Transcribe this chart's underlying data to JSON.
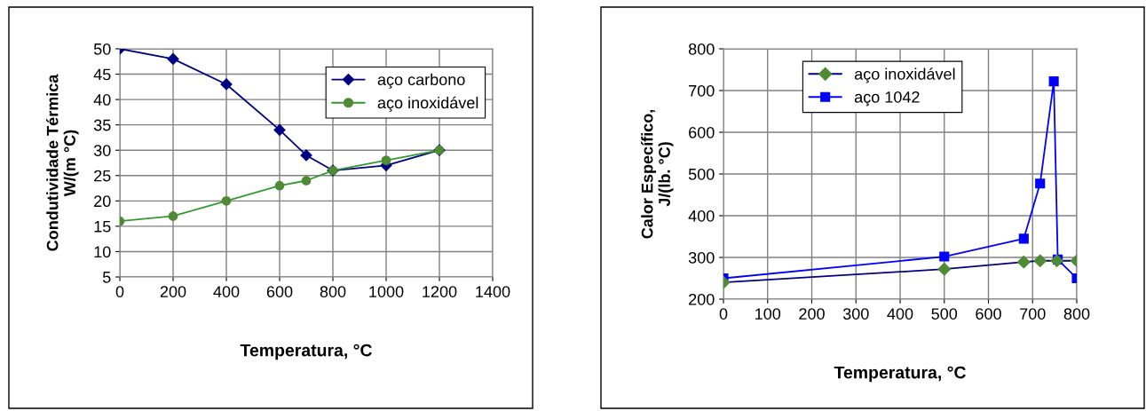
{
  "chart_data": [
    {
      "type": "line",
      "xlabel": "Temperatura, °C",
      "ylabel": "Condutividade Térmica\nW/(m °C)",
      "xlim": [
        0,
        1400
      ],
      "xticks": [
        0,
        200,
        400,
        600,
        800,
        1000,
        1200,
        1400
      ],
      "ylim": [
        5,
        50
      ],
      "yticks": [
        5,
        10,
        15,
        20,
        25,
        30,
        35,
        40,
        45,
        50
      ],
      "grid": true,
      "legend": "top right",
      "line_style": "solid",
      "series": [
        {
          "name": "aço carbono",
          "color": "#000080",
          "marker": "diamond",
          "x": [
            0,
            200,
            400,
            600,
            700,
            800,
            1000,
            1200
          ],
          "values": [
            50,
            48,
            43,
            34,
            29,
            26,
            27,
            30
          ]
        },
        {
          "name": "aço inoxidável",
          "color": "#339933",
          "colors": [
            "#4f8a34",
            "#4f8a34",
            "#4f8a34",
            "#4f8a34",
            "#4f8a34",
            "#4f8a34",
            "#4f8a34",
            "#4f8a34"
          ],
          "marker": "circle",
          "x": [
            0,
            200,
            400,
            600,
            700,
            800,
            1000,
            1200
          ],
          "values": [
            16,
            17,
            20,
            23,
            24,
            26,
            28,
            30
          ]
        }
      ]
    },
    {
      "type": "line",
      "xlabel": "Temperatura, °C",
      "ylabel": "Calor Específico,\nJ/(lb. °C)",
      "xlim": [
        0,
        800
      ],
      "xticks": [
        0,
        100,
        200,
        300,
        400,
        500,
        600,
        700,
        800
      ],
      "ylim": [
        200,
        800
      ],
      "yticks": [
        200,
        300,
        400,
        500,
        600,
        700,
        800
      ],
      "grid": true,
      "legend": "top",
      "line_style": "solid",
      "series": [
        {
          "name": "aço inoxidável",
          "color": "#000080",
          "colors": [
            "#4f8a34",
            "#4f8a34",
            "#4f8a34",
            "#4f8a34",
            "#4f8a34",
            "#4f8a34"
          ],
          "marker": "diamond",
          "x": [
            0,
            500,
            680,
            717,
            755,
            800
          ],
          "values": [
            240,
            272,
            289,
            292,
            292,
            292
          ]
        },
        {
          "name": "aço 1042",
          "color": "#0000ff",
          "marker": "square",
          "x": [
            0,
            500,
            680,
            717,
            748,
            757,
            800
          ],
          "values": [
            250,
            302,
            345,
            477,
            722,
            295,
            250
          ]
        }
      ]
    }
  ]
}
